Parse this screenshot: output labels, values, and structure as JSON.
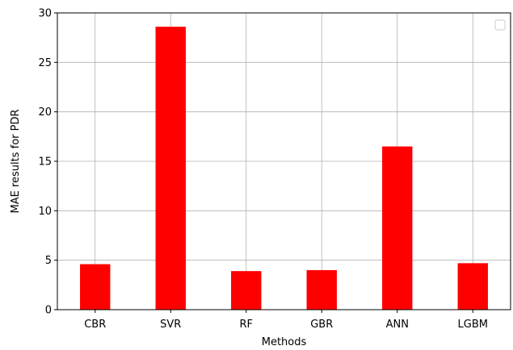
{
  "chart_data": {
    "type": "bar",
    "categories": [
      "CBR",
      "SVR",
      "RF",
      "GBR",
      "ANN",
      "LGBM"
    ],
    "values": [
      4.6,
      28.6,
      3.9,
      4.0,
      16.5,
      4.7
    ],
    "title": "",
    "xlabel": "Methods",
    "ylabel": "MAE results for PDR",
    "ylim": [
      0,
      30
    ],
    "yticks": [
      "0",
      "5",
      "10",
      "15",
      "20",
      "25",
      "30"
    ],
    "grid": true,
    "bar_color": "#ff0000",
    "legend": {
      "placement": "upper-right",
      "entries": []
    }
  }
}
